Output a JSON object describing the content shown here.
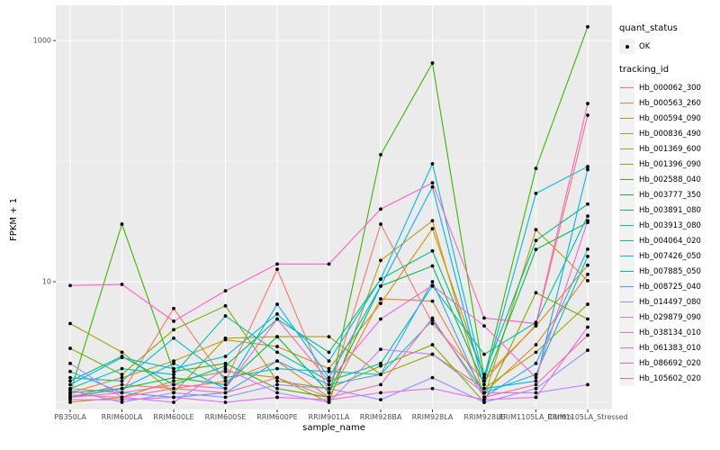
{
  "y_axis": {
    "label": "FPKM + 1",
    "ticks": [
      "1000",
      "10"
    ],
    "tick_values": [
      1000,
      10
    ]
  },
  "x_axis": {
    "label": "sample_name"
  },
  "legend": {
    "quant_status_title": "quant_status",
    "quant_status_items": [
      "OK"
    ],
    "tracking_title": "tracking_id"
  },
  "chart_data": {
    "type": "line",
    "title": "",
    "xlabel": "sample_name",
    "ylabel": "FPKM + 1",
    "yscale": "log10",
    "ylim": [
      1,
      1400
    ],
    "y_major_gridlines": [
      10,
      1000
    ],
    "y_minor_gridlines": [
      1,
      100
    ],
    "grid": "on",
    "legend_position": "right",
    "point_color": "#000000",
    "panel_color": "#ebebeb",
    "x_categories": [
      "PB350LA",
      "RRIM600LA",
      "RRIM600LE",
      "RRIM600SE",
      "RRIM600PE",
      "RRIM901LA",
      "RRIM928BA",
      "RRIM928LA",
      "RRIM928LE",
      "RRIM1105LA_Control",
      "RRIM1105LA_Stressed"
    ],
    "series": [
      {
        "name": "Hb_000062_300",
        "color": "#F8766D",
        "values": [
          1.3,
          1.2,
          6.0,
          1.5,
          12.7,
          1.2,
          30,
          4.5,
          1.5,
          4.4,
          240
        ]
      },
      {
        "name": "Hb_000563_260",
        "color": "#EA8331",
        "values": [
          1.1,
          1.4,
          1.3,
          1.5,
          2.2,
          1.1,
          7.2,
          6.9,
          1.2,
          3.0,
          11.5
        ]
      },
      {
        "name": "Hb_000594_090",
        "color": "#D89000",
        "values": [
          1.2,
          1.6,
          2.2,
          3.3,
          2.9,
          1.9,
          6.6,
          27.5,
          1.6,
          4.3,
          13.7
        ]
      },
      {
        "name": "Hb_000836_490",
        "color": "#C09B00",
        "values": [
          1.0,
          1.1,
          1.5,
          1.8,
          1.6,
          1.0,
          15,
          32,
          1.1,
          27,
          10.2
        ]
      },
      {
        "name": "Hb_001369_600",
        "color": "#A3A500",
        "values": [
          4.5,
          2.6,
          1.2,
          3.4,
          3.5,
          3.5,
          1.7,
          2.5,
          1.3,
          2.6,
          6.5
        ]
      },
      {
        "name": "Hb_001396_090",
        "color": "#7CAE00",
        "values": [
          2.8,
          1.7,
          4.0,
          6.3,
          1.5,
          1.3,
          2.0,
          3.0,
          1.0,
          8.1,
          4.9
        ]
      },
      {
        "name": "Hb_002588_040",
        "color": "#39B600",
        "values": [
          1.2,
          30,
          1.8,
          2.1,
          1.3,
          1.1,
          113,
          650,
          1.6,
          87,
          1300
        ]
      },
      {
        "name": "Hb_003777_350",
        "color": "#00BB4E",
        "values": [
          1.1,
          1.3,
          1.6,
          1.4,
          3.5,
          1.2,
          9.2,
          13.5,
          1.4,
          18.5,
          31
        ]
      },
      {
        "name": "Hb_003891_080",
        "color": "#00BF7D",
        "values": [
          1.5,
          2.4,
          1.4,
          2.0,
          4.9,
          2.6,
          10.5,
          18,
          1.7,
          22,
          44
        ]
      },
      {
        "name": "Hb_003913_080",
        "color": "#00C1A3",
        "values": [
          1.3,
          1.9,
          1.7,
          5.2,
          2.6,
          1.5,
          2.1,
          9.2,
          2.5,
          4.6,
          35
        ]
      },
      {
        "name": "Hb_004064_020",
        "color": "#00BFC4",
        "values": [
          1.6,
          1.5,
          3.4,
          1.6,
          1.9,
          1.8,
          1.7,
          4.8,
          1.2,
          1.7,
          16.2
        ]
      },
      {
        "name": "Hb_007426_050",
        "color": "#00BAE0",
        "values": [
          1.4,
          2.35,
          1.9,
          2.4,
          5.4,
          2.2,
          10.5,
          95,
          1.5,
          54,
          90
        ]
      },
      {
        "name": "Hb_007885_050",
        "color": "#00B0F6",
        "values": [
          1.2,
          1.3,
          2.1,
          1.3,
          6.5,
          1.6,
          9.2,
          61,
          1.3,
          1.5,
          85
        ]
      },
      {
        "name": "Hb_008725_040",
        "color": "#35A2FF",
        "values": [
          1.8,
          1.2,
          1.1,
          1.2,
          2.2,
          1.4,
          1.7,
          10,
          1.1,
          2.1,
          18.6
        ]
      },
      {
        "name": "Hb_014497_080",
        "color": "#9590FF",
        "values": [
          1.26,
          1.0,
          1.2,
          1.1,
          1.4,
          1.3,
          1.05,
          1.6,
          1.0,
          1.3,
          2.7
        ]
      },
      {
        "name": "Hb_029879_090",
        "color": "#C77CFF",
        "values": [
          2.1,
          1.1,
          1.0,
          1.9,
          1.2,
          1.0,
          2.75,
          2.5,
          1.2,
          1.2,
          1.4
        ]
      },
      {
        "name": "Hb_038134_010",
        "color": "#E76BF3",
        "values": [
          1.05,
          1.05,
          1.1,
          1.0,
          1.1,
          1.05,
          1.2,
          1.3,
          1.05,
          1.1,
          4.2
        ]
      },
      {
        "name": "Hb_061383_010",
        "color": "#FA62DB",
        "values": [
          1.1,
          1.2,
          1.4,
          1.3,
          4.9,
          1.5,
          4.9,
          9.3,
          4.3,
          1.6,
          32
        ]
      },
      {
        "name": "Hb_086692_020",
        "color": "#FF61C3",
        "values": [
          9.3,
          9.5,
          4.7,
          8.4,
          14,
          14,
          40,
          66,
          5.0,
          4.5,
          300
        ]
      },
      {
        "name": "Hb_105602_020",
        "color": "#FF67A4",
        "values": [
          1.15,
          1.1,
          1.3,
          1.2,
          1.6,
          1.1,
          1.4,
          5.0,
          1.1,
          1.4,
          3.6
        ]
      }
    ]
  }
}
